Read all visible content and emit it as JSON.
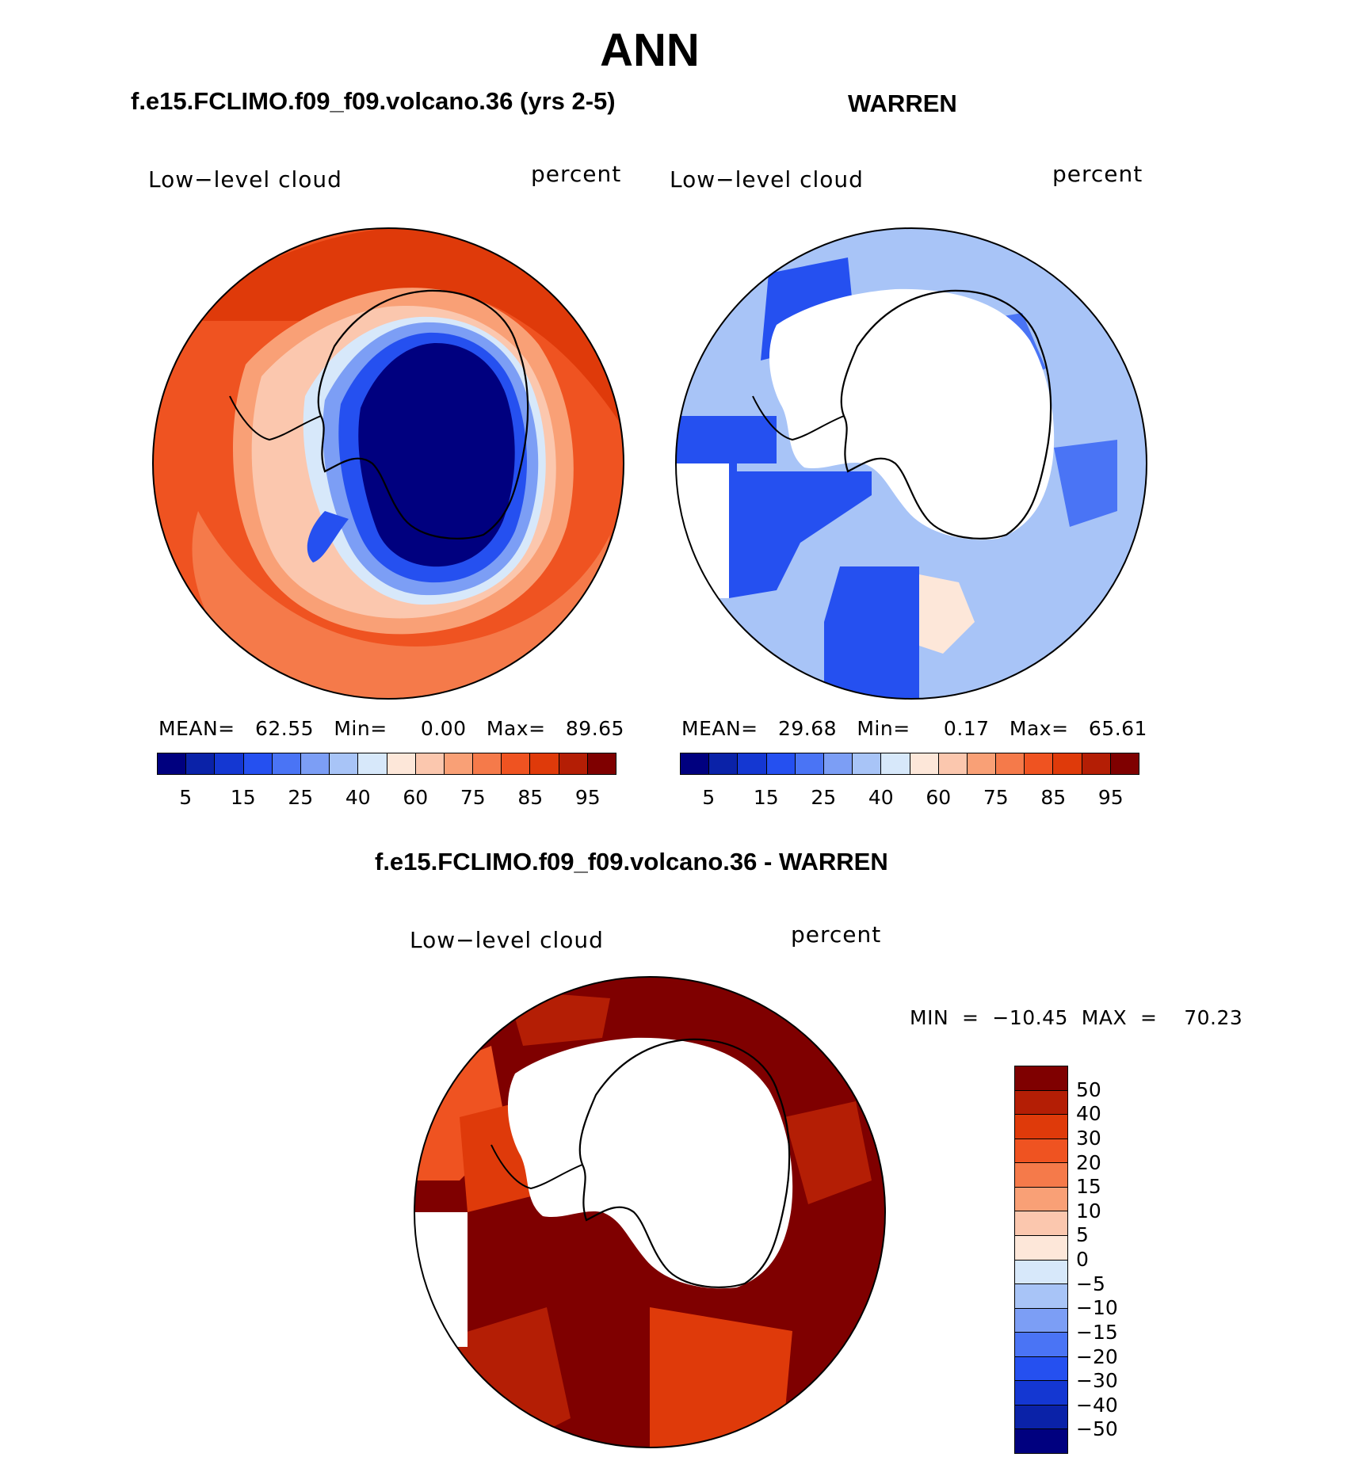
{
  "page_title": "ANN",
  "panels": {
    "model": {
      "title": "f.e15.FCLIMO.f09_f09.volcano.36 (yrs 2-5)",
      "variable": "Low−level cloud",
      "units": "percent",
      "stats": "MEAN=   62.55   Min=     0.00   Max=   89.65"
    },
    "obs": {
      "title": "WARREN",
      "variable": "Low−level cloud",
      "units": "percent",
      "stats": "MEAN=   29.68   Min=     0.17   Max=   65.61"
    },
    "diff": {
      "title": "f.e15.FCLIMO.f09_f09.volcano.36 - WARREN",
      "variable": "Low−level cloud",
      "units": "percent",
      "stats": "MIN  =  −10.45  MAX  =    70.23"
    }
  },
  "colorbar_main": {
    "colors": [
      "#00007f",
      "#0a22a8",
      "#1437d2",
      "#2550f0",
      "#4a74f5",
      "#7c9ef5",
      "#a8c4f7",
      "#d7e8fa",
      "#fde7d9",
      "#fbc7ae",
      "#f9a076",
      "#f57a4a",
      "#ef5321",
      "#df3a0a",
      "#b41e05",
      "#7f0000"
    ],
    "labels": [
      "5",
      "15",
      "25",
      "40",
      "60",
      "75",
      "85",
      "95"
    ]
  },
  "colorbar_diff": {
    "colors": [
      "#00007f",
      "#0a22a8",
      "#1437d2",
      "#2550f0",
      "#4a74f5",
      "#7c9ef5",
      "#a8c4f7",
      "#d7e8fa",
      "#fde7d9",
      "#fbc7ae",
      "#f9a076",
      "#f57a4a",
      "#ef5321",
      "#df3a0a",
      "#b41e05",
      "#7f0000"
    ],
    "labels": [
      "−50",
      "−40",
      "−30",
      "−20",
      "−15",
      "−10",
      "−5",
      "0",
      "5",
      "10",
      "15",
      "20",
      "30",
      "40",
      "50"
    ]
  }
}
